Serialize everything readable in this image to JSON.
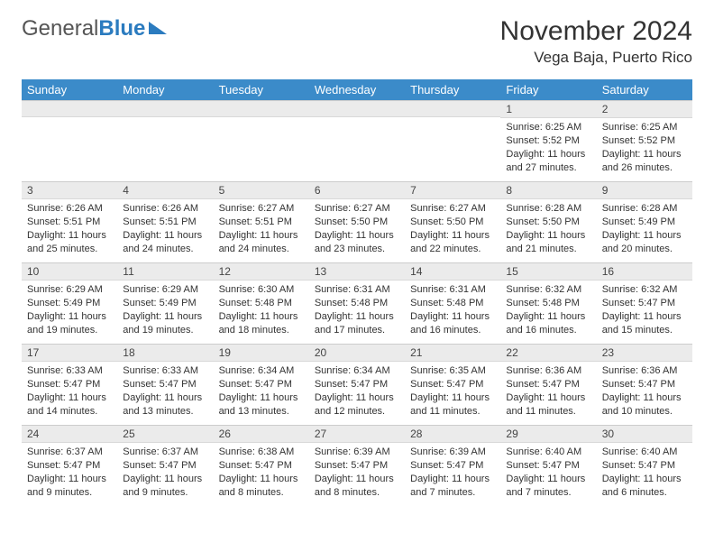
{
  "logo": {
    "text1": "General",
    "text2": "Blue"
  },
  "title": {
    "month": "November 2024",
    "location": "Vega Baja, Puerto Rico"
  },
  "weekdays": [
    "Sunday",
    "Monday",
    "Tuesday",
    "Wednesday",
    "Thursday",
    "Friday",
    "Saturday"
  ],
  "style": {
    "header_bg": "#3b8bc9",
    "header_fg": "#ffffff",
    "stripe_bg": "#ebebeb",
    "border": "#cccccc",
    "text": "#333333"
  },
  "grid": {
    "rows": 5,
    "cols": 7,
    "leading_blanks": 5,
    "days": [
      {
        "n": 1,
        "sunrise": "6:25 AM",
        "sunset": "5:52 PM",
        "daylight": "11 hours and 27 minutes."
      },
      {
        "n": 2,
        "sunrise": "6:25 AM",
        "sunset": "5:52 PM",
        "daylight": "11 hours and 26 minutes."
      },
      {
        "n": 3,
        "sunrise": "6:26 AM",
        "sunset": "5:51 PM",
        "daylight": "11 hours and 25 minutes."
      },
      {
        "n": 4,
        "sunrise": "6:26 AM",
        "sunset": "5:51 PM",
        "daylight": "11 hours and 24 minutes."
      },
      {
        "n": 5,
        "sunrise": "6:27 AM",
        "sunset": "5:51 PM",
        "daylight": "11 hours and 24 minutes."
      },
      {
        "n": 6,
        "sunrise": "6:27 AM",
        "sunset": "5:50 PM",
        "daylight": "11 hours and 23 minutes."
      },
      {
        "n": 7,
        "sunrise": "6:27 AM",
        "sunset": "5:50 PM",
        "daylight": "11 hours and 22 minutes."
      },
      {
        "n": 8,
        "sunrise": "6:28 AM",
        "sunset": "5:50 PM",
        "daylight": "11 hours and 21 minutes."
      },
      {
        "n": 9,
        "sunrise": "6:28 AM",
        "sunset": "5:49 PM",
        "daylight": "11 hours and 20 minutes."
      },
      {
        "n": 10,
        "sunrise": "6:29 AM",
        "sunset": "5:49 PM",
        "daylight": "11 hours and 19 minutes."
      },
      {
        "n": 11,
        "sunrise": "6:29 AM",
        "sunset": "5:49 PM",
        "daylight": "11 hours and 19 minutes."
      },
      {
        "n": 12,
        "sunrise": "6:30 AM",
        "sunset": "5:48 PM",
        "daylight": "11 hours and 18 minutes."
      },
      {
        "n": 13,
        "sunrise": "6:31 AM",
        "sunset": "5:48 PM",
        "daylight": "11 hours and 17 minutes."
      },
      {
        "n": 14,
        "sunrise": "6:31 AM",
        "sunset": "5:48 PM",
        "daylight": "11 hours and 16 minutes."
      },
      {
        "n": 15,
        "sunrise": "6:32 AM",
        "sunset": "5:48 PM",
        "daylight": "11 hours and 16 minutes."
      },
      {
        "n": 16,
        "sunrise": "6:32 AM",
        "sunset": "5:47 PM",
        "daylight": "11 hours and 15 minutes."
      },
      {
        "n": 17,
        "sunrise": "6:33 AM",
        "sunset": "5:47 PM",
        "daylight": "11 hours and 14 minutes."
      },
      {
        "n": 18,
        "sunrise": "6:33 AM",
        "sunset": "5:47 PM",
        "daylight": "11 hours and 13 minutes."
      },
      {
        "n": 19,
        "sunrise": "6:34 AM",
        "sunset": "5:47 PM",
        "daylight": "11 hours and 13 minutes."
      },
      {
        "n": 20,
        "sunrise": "6:34 AM",
        "sunset": "5:47 PM",
        "daylight": "11 hours and 12 minutes."
      },
      {
        "n": 21,
        "sunrise": "6:35 AM",
        "sunset": "5:47 PM",
        "daylight": "11 hours and 11 minutes."
      },
      {
        "n": 22,
        "sunrise": "6:36 AM",
        "sunset": "5:47 PM",
        "daylight": "11 hours and 11 minutes."
      },
      {
        "n": 23,
        "sunrise": "6:36 AM",
        "sunset": "5:47 PM",
        "daylight": "11 hours and 10 minutes."
      },
      {
        "n": 24,
        "sunrise": "6:37 AM",
        "sunset": "5:47 PM",
        "daylight": "11 hours and 9 minutes."
      },
      {
        "n": 25,
        "sunrise": "6:37 AM",
        "sunset": "5:47 PM",
        "daylight": "11 hours and 9 minutes."
      },
      {
        "n": 26,
        "sunrise": "6:38 AM",
        "sunset": "5:47 PM",
        "daylight": "11 hours and 8 minutes."
      },
      {
        "n": 27,
        "sunrise": "6:39 AM",
        "sunset": "5:47 PM",
        "daylight": "11 hours and 8 minutes."
      },
      {
        "n": 28,
        "sunrise": "6:39 AM",
        "sunset": "5:47 PM",
        "daylight": "11 hours and 7 minutes."
      },
      {
        "n": 29,
        "sunrise": "6:40 AM",
        "sunset": "5:47 PM",
        "daylight": "11 hours and 7 minutes."
      },
      {
        "n": 30,
        "sunrise": "6:40 AM",
        "sunset": "5:47 PM",
        "daylight": "11 hours and 6 minutes."
      }
    ]
  },
  "labels": {
    "sunrise": "Sunrise:",
    "sunset": "Sunset:",
    "daylight": "Daylight:"
  }
}
